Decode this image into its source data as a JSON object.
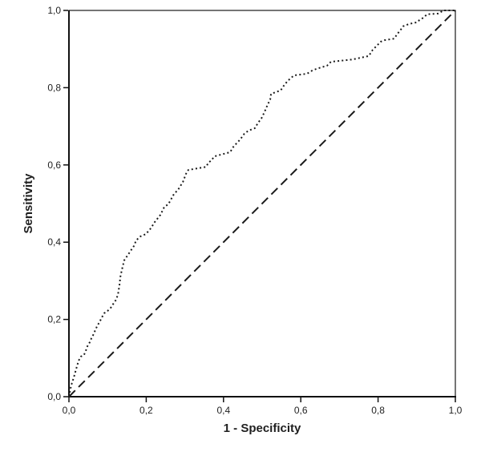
{
  "chart_data": {
    "type": "line",
    "title": "",
    "xlabel": "1 - Specificity",
    "ylabel": "Sensitivity",
    "xlim": [
      0,
      1
    ],
    "ylim": [
      0,
      1
    ],
    "grid": false,
    "legend": "none",
    "decimal_separator": ",",
    "x_tick_values": [
      0.0,
      0.2,
      0.4,
      0.6,
      0.8,
      1.0
    ],
    "x_tick_labels": [
      "0,0",
      "0,2",
      "0,4",
      "0,6",
      "0,8",
      "1,0"
    ],
    "y_tick_values": [
      0.0,
      0.2,
      0.4,
      0.6,
      0.8,
      1.0
    ],
    "y_tick_labels": [
      "0,0",
      "0,2",
      "0,4",
      "0,6",
      "0,8",
      "1,0"
    ],
    "series": [
      {
        "name": "ROC curve",
        "style": "dotted",
        "color": "#1a1a1a",
        "points": [
          [
            0.0,
            0.0
          ],
          [
            0.004,
            0.021
          ],
          [
            0.008,
            0.037
          ],
          [
            0.012,
            0.048
          ],
          [
            0.019,
            0.073
          ],
          [
            0.025,
            0.093
          ],
          [
            0.031,
            0.104
          ],
          [
            0.039,
            0.108
          ],
          [
            0.044,
            0.12
          ],
          [
            0.048,
            0.131
          ],
          [
            0.054,
            0.141
          ],
          [
            0.058,
            0.151
          ],
          [
            0.064,
            0.162
          ],
          [
            0.068,
            0.172
          ],
          [
            0.073,
            0.183
          ],
          [
            0.079,
            0.193
          ],
          [
            0.085,
            0.205
          ],
          [
            0.091,
            0.216
          ],
          [
            0.1,
            0.222
          ],
          [
            0.108,
            0.23
          ],
          [
            0.114,
            0.239
          ],
          [
            0.122,
            0.251
          ],
          [
            0.127,
            0.265
          ],
          [
            0.131,
            0.29
          ],
          [
            0.133,
            0.31
          ],
          [
            0.137,
            0.328
          ],
          [
            0.143,
            0.353
          ],
          [
            0.154,
            0.369
          ],
          [
            0.168,
            0.39
          ],
          [
            0.174,
            0.405
          ],
          [
            0.185,
            0.415
          ],
          [
            0.199,
            0.421
          ],
          [
            0.212,
            0.436
          ],
          [
            0.222,
            0.452
          ],
          [
            0.237,
            0.471
          ],
          [
            0.247,
            0.492
          ],
          [
            0.257,
            0.498
          ],
          [
            0.272,
            0.525
          ],
          [
            0.282,
            0.535
          ],
          [
            0.295,
            0.556
          ],
          [
            0.303,
            0.577
          ],
          [
            0.309,
            0.587
          ],
          [
            0.355,
            0.595
          ],
          [
            0.361,
            0.606
          ],
          [
            0.369,
            0.612
          ],
          [
            0.376,
            0.622
          ],
          [
            0.417,
            0.633
          ],
          [
            0.427,
            0.649
          ],
          [
            0.438,
            0.66
          ],
          [
            0.446,
            0.67
          ],
          [
            0.454,
            0.681
          ],
          [
            0.465,
            0.689
          ],
          [
            0.481,
            0.695
          ],
          [
            0.49,
            0.71
          ],
          [
            0.498,
            0.72
          ],
          [
            0.506,
            0.737
          ],
          [
            0.512,
            0.751
          ],
          [
            0.521,
            0.77
          ],
          [
            0.523,
            0.784
          ],
          [
            0.548,
            0.793
          ],
          [
            0.556,
            0.805
          ],
          [
            0.564,
            0.815
          ],
          [
            0.573,
            0.824
          ],
          [
            0.583,
            0.832
          ],
          [
            0.616,
            0.836
          ],
          [
            0.629,
            0.844
          ],
          [
            0.641,
            0.849
          ],
          [
            0.668,
            0.857
          ],
          [
            0.678,
            0.867
          ],
          [
            0.734,
            0.873
          ],
          [
            0.776,
            0.882
          ],
          [
            0.786,
            0.898
          ],
          [
            0.797,
            0.909
          ],
          [
            0.807,
            0.919
          ],
          [
            0.817,
            0.923
          ],
          [
            0.842,
            0.927
          ],
          [
            0.849,
            0.938
          ],
          [
            0.857,
            0.948
          ],
          [
            0.865,
            0.959
          ],
          [
            0.88,
            0.965
          ],
          [
            0.9,
            0.969
          ],
          [
            0.907,
            0.975
          ],
          [
            0.917,
            0.981
          ],
          [
            0.927,
            0.99
          ],
          [
            0.956,
            0.992
          ],
          [
            0.969,
            1.0
          ],
          [
            1.0,
            1.0
          ]
        ]
      },
      {
        "name": "Diagonal reference line",
        "style": "dashed",
        "color": "#1a1a1a",
        "points": [
          [
            0.0,
            0.0
          ],
          [
            1.0,
            1.0
          ]
        ]
      }
    ],
    "colors": {
      "axis": "#111111",
      "border": "#2b2b2b",
      "text": "#1f1f1f",
      "background": "#ffffff"
    }
  }
}
